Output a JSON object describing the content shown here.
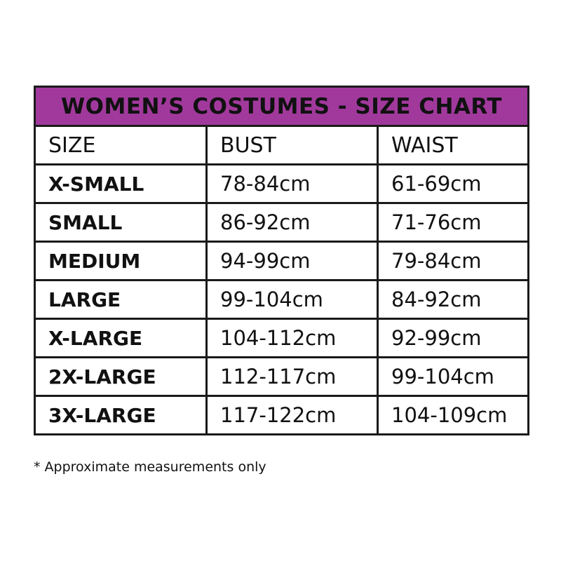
{
  "title": "WOMEN’S COSTUMES - SIZE CHART",
  "colors": {
    "header_bg": "#a1399d",
    "border": "#1a1a1a"
  },
  "columns": [
    "SIZE",
    "BUST",
    "WAIST"
  ],
  "rows": [
    [
      "X-SMALL",
      "78-84cm",
      "61-69cm"
    ],
    [
      "SMALL",
      "86-92cm",
      "71-76cm"
    ],
    [
      "MEDIUM",
      "94-99cm",
      "79-84cm"
    ],
    [
      "LARGE",
      "99-104cm",
      "84-92cm"
    ],
    [
      "X-LARGE",
      "104-112cm",
      "92-99cm"
    ],
    [
      "2X-LARGE",
      "112-117cm",
      "99-104cm"
    ],
    [
      "3X-LARGE",
      "117-122cm",
      "104-109cm"
    ]
  ],
  "footnote": "* Approximate measurements only"
}
